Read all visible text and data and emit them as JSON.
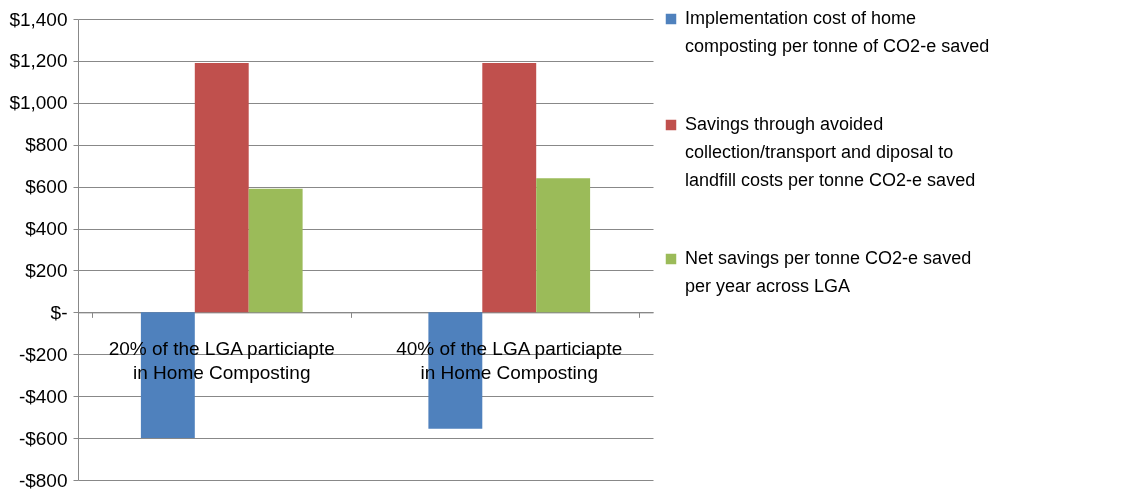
{
  "chart_data": {
    "type": "bar",
    "categories": [
      "20% of the LGA particiapte in Home Composting",
      "40% of the LGA particiapte in Home Composting"
    ],
    "series": [
      {
        "name": "Implementation cost of home composting  per tonne of CO2-e saved",
        "color": "#4f81bd",
        "values": [
          -600,
          -555
        ]
      },
      {
        "name": "Savings through avoided collection/transport and diposal to landfill costs per tonne CO2-e saved",
        "color": "#c0504d",
        "values": [
          1190,
          1190
        ]
      },
      {
        "name": "Net savings per tonne CO2-e saved per year across LGA",
        "color": "#9bbb59",
        "values": [
          590,
          640
        ]
      }
    ],
    "ylim": [
      -800,
      1400
    ],
    "yticks": [
      {
        "value": -800,
        "label": "-$800"
      },
      {
        "value": -600,
        "label": "-$600"
      },
      {
        "value": -400,
        "label": "-$400"
      },
      {
        "value": -200,
        "label": "-$200"
      },
      {
        "value": 0,
        "label": "$-"
      },
      {
        "value": 200,
        "label": "$200"
      },
      {
        "value": 400,
        "label": "$400"
      },
      {
        "value": 600,
        "label": "$600"
      },
      {
        "value": 800,
        "label": "$800"
      },
      {
        "value": 1000,
        "label": "$1,000"
      },
      {
        "value": 1200,
        "label": "$1,200"
      },
      {
        "value": 1400,
        "label": "$1,400"
      }
    ],
    "grid": "y",
    "legend": "right"
  }
}
